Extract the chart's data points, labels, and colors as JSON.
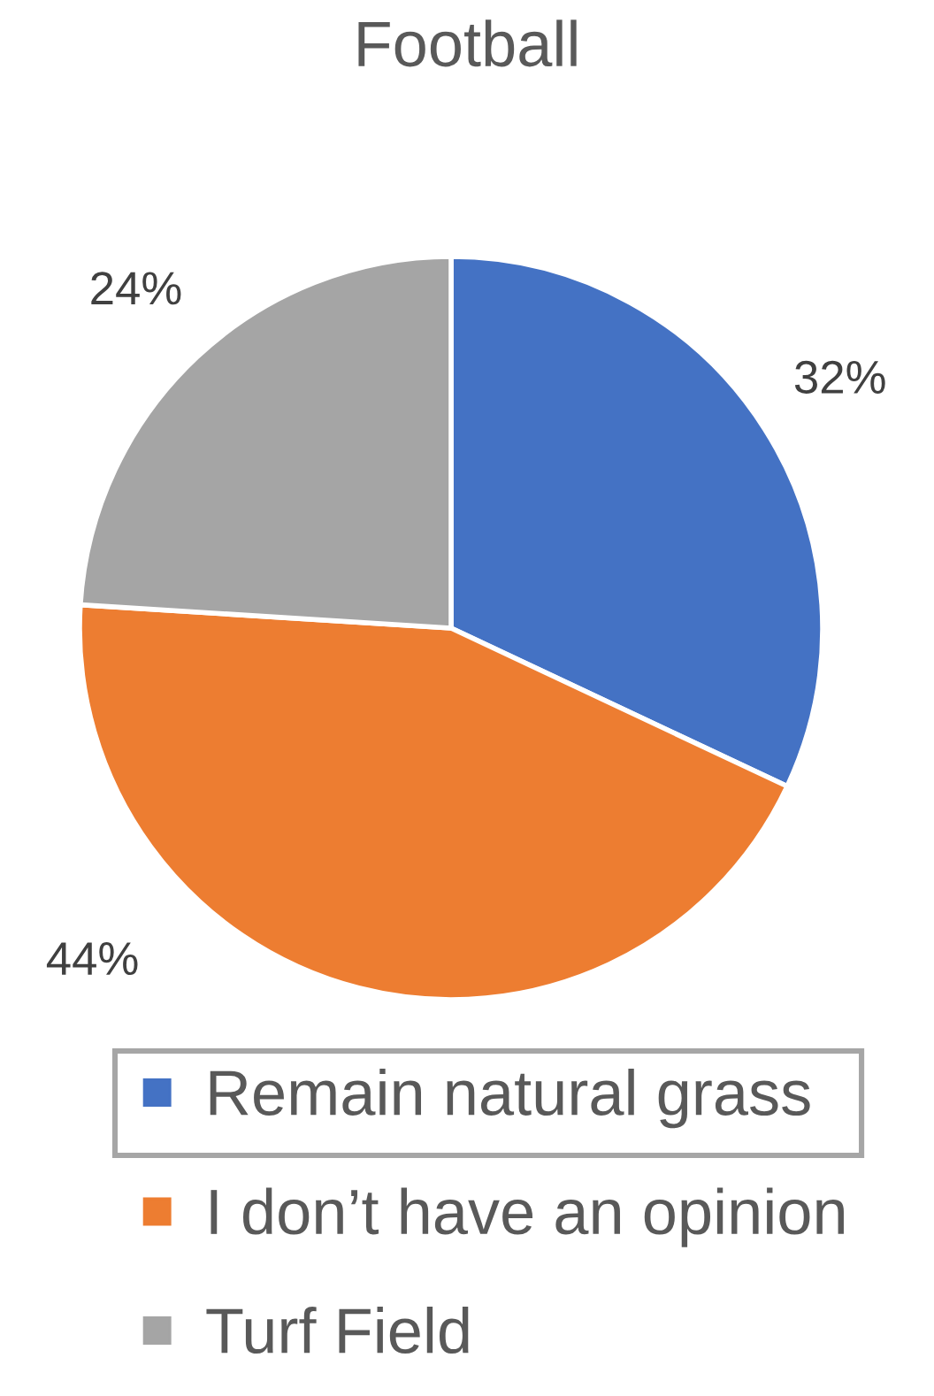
{
  "chart_data": {
    "type": "pie",
    "title": "Football",
    "categories": [
      "Remain natural grass",
      "I don’t have an opinion",
      "Turf Field"
    ],
    "values": [
      32,
      44,
      24
    ],
    "colors": [
      "#4472c4",
      "#ed7d31",
      "#a5a5a5"
    ],
    "value_labels": [
      "32%",
      "44%",
      "24%"
    ],
    "legend": "bottom"
  }
}
